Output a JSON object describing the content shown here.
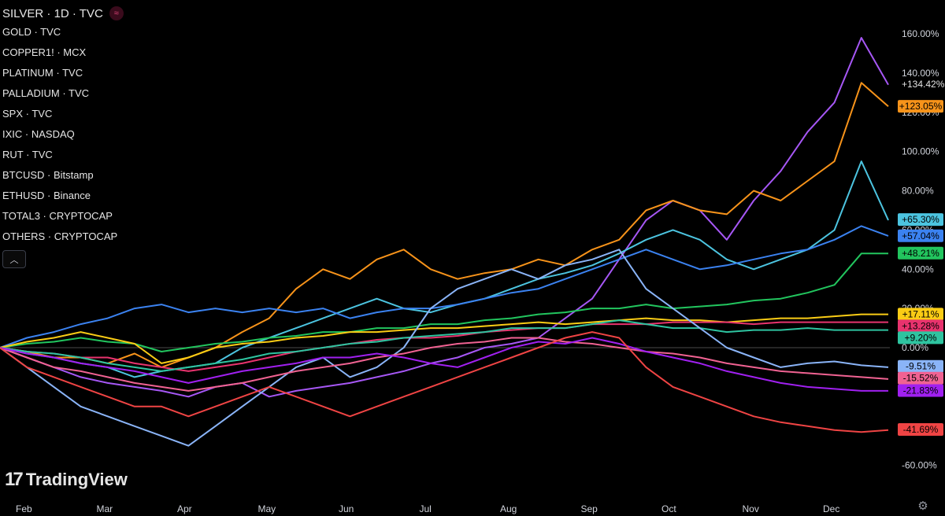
{
  "legend": {
    "main_symbol": "SILVER · 1D · TVC",
    "live_icon": "≈",
    "items": [
      "GOLD · TVC",
      "COPPER1! · MCX",
      "PLATINUM · TVC",
      "PALLADIUM · TVC",
      "SPX · TVC",
      "IXIC · NASDAQ",
      "RUT · TVC",
      "BTCUSD · Bitstamp",
      "ETHUSD · Binance",
      "TOTAL3 · CRYPTOCAP",
      "OTHERS · CRYPTOCAP"
    ],
    "collapse_icon": "chevron-up-icon",
    "collapse_glyph": "︿"
  },
  "brand": {
    "mark": "17",
    "name": "TradingView"
  },
  "settings_glyph": "⚙",
  "chart_data": {
    "type": "line",
    "x_labels": [
      "Feb",
      "Mar",
      "Apr",
      "May",
      "Jun",
      "Jul",
      "Aug",
      "Sep",
      "Oct",
      "Nov",
      "Dec"
    ],
    "y_ticks": [
      "160.00%",
      "140.00%",
      "120.00%",
      "100.00%",
      "80.00%",
      "60.00%",
      "40.00%",
      "20.00%",
      "0.00%",
      "-60.00%"
    ],
    "y_unit": "%",
    "ylim": [
      -65,
      170
    ],
    "zero_line": true,
    "badges": [
      {
        "text": "+134.42%",
        "color": "#a657f5",
        "plain": true,
        "value": 134.42
      },
      {
        "text": "+123.05%",
        "color": "#f7931a",
        "value": 123.05
      },
      {
        "text": "+65.30%",
        "color": "#4cc4e0",
        "value": 65.3
      },
      {
        "text": "+57.04%",
        "color": "#3b82f0",
        "value": 57.04
      },
      {
        "text": "+48.21%",
        "color": "#22c55e",
        "value": 48.21
      },
      {
        "text": "+17.11%",
        "color": "#facc15",
        "value": 17.11
      },
      {
        "text": "+13.28%",
        "color": "#e8336e",
        "value": 13.28
      },
      {
        "text": "+9.20%",
        "color": "#2ec4a0",
        "value": 9.2
      },
      {
        "text": "-9.51%",
        "color": "#8ab4f8",
        "value": -9.51
      },
      {
        "text": "-15.52%",
        "color": "#f06292",
        "value": -15.52
      },
      {
        "text": "-21.83%",
        "color": "#a020f0",
        "value": -21.83
      },
      {
        "text": "-41.69%",
        "color": "#ef4444",
        "value": -41.69
      }
    ],
    "series": [
      {
        "color": "#a657f5",
        "values": [
          0,
          -5,
          -10,
          -15,
          -18,
          -20,
          -22,
          -25,
          -20,
          -18,
          -25,
          -22,
          -20,
          -18,
          -15,
          -12,
          -8,
          -5,
          0,
          2,
          5,
          15,
          25,
          45,
          65,
          75,
          70,
          55,
          75,
          90,
          110,
          125,
          158,
          134
        ]
      },
      {
        "color": "#f7931a",
        "values": [
          0,
          -2,
          -5,
          -5,
          -8,
          -3,
          -10,
          -5,
          0,
          8,
          15,
          30,
          40,
          35,
          45,
          50,
          40,
          35,
          38,
          40,
          45,
          42,
          50,
          55,
          70,
          75,
          70,
          68,
          80,
          75,
          85,
          95,
          135,
          123
        ]
      },
      {
        "color": "#4cc4e0",
        "values": [
          0,
          -3,
          -5,
          -8,
          -10,
          -15,
          -12,
          -10,
          -8,
          0,
          5,
          10,
          15,
          20,
          25,
          20,
          18,
          22,
          25,
          30,
          35,
          38,
          42,
          48,
          55,
          60,
          55,
          45,
          40,
          45,
          50,
          60,
          95,
          65
        ]
      },
      {
        "color": "#3b82f0",
        "values": [
          0,
          5,
          8,
          12,
          15,
          20,
          22,
          18,
          20,
          18,
          20,
          18,
          20,
          15,
          18,
          20,
          20,
          22,
          25,
          28,
          30,
          35,
          40,
          45,
          50,
          45,
          40,
          42,
          45,
          48,
          50,
          55,
          62,
          57
        ]
      },
      {
        "color": "#22c55e",
        "values": [
          0,
          2,
          3,
          5,
          3,
          2,
          -2,
          0,
          2,
          3,
          5,
          6,
          8,
          8,
          10,
          10,
          12,
          12,
          14,
          15,
          17,
          18,
          20,
          20,
          22,
          20,
          21,
          22,
          24,
          25,
          28,
          32,
          48,
          48
        ]
      },
      {
        "color": "#facc15",
        "values": [
          0,
          3,
          5,
          8,
          5,
          2,
          -8,
          -5,
          0,
          2,
          3,
          5,
          6,
          8,
          8,
          9,
          10,
          10,
          11,
          12,
          13,
          12,
          13,
          14,
          15,
          14,
          14,
          13,
          14,
          15,
          15,
          16,
          17,
          17
        ]
      },
      {
        "color": "#e8336e",
        "values": [
          0,
          -2,
          -3,
          -5,
          -5,
          -8,
          -10,
          -12,
          -10,
          -8,
          -5,
          -2,
          0,
          2,
          4,
          5,
          5,
          6,
          8,
          9,
          10,
          10,
          12,
          12,
          12,
          13,
          13,
          13,
          12,
          13,
          13,
          13,
          13,
          13
        ]
      },
      {
        "color": "#2ec4a0",
        "values": [
          0,
          -2,
          -3,
          -5,
          -8,
          -10,
          -12,
          -10,
          -8,
          -6,
          -3,
          -2,
          0,
          2,
          3,
          5,
          6,
          7,
          8,
          10,
          10,
          10,
          12,
          14,
          12,
          10,
          10,
          8,
          9,
          9,
          10,
          9,
          9,
          9
        ]
      },
      {
        "color": "#8ab4f8",
        "values": [
          0,
          -10,
          -20,
          -30,
          -35,
          -40,
          -45,
          -50,
          -40,
          -30,
          -20,
          -10,
          -5,
          -15,
          -10,
          0,
          20,
          30,
          35,
          40,
          35,
          42,
          45,
          50,
          30,
          20,
          10,
          0,
          -5,
          -10,
          -8,
          -7,
          -9,
          -10
        ]
      },
      {
        "color": "#f06292",
        "values": [
          0,
          -5,
          -10,
          -12,
          -15,
          -18,
          -20,
          -22,
          -20,
          -18,
          -15,
          -12,
          -10,
          -8,
          -5,
          -3,
          0,
          2,
          3,
          5,
          5,
          3,
          2,
          0,
          -2,
          -3,
          -5,
          -8,
          -10,
          -12,
          -13,
          -14,
          -15,
          -16
        ]
      },
      {
        "color": "#a020f0",
        "values": [
          0,
          -3,
          -5,
          -8,
          -10,
          -12,
          -15,
          -18,
          -15,
          -12,
          -10,
          -8,
          -5,
          -5,
          -3,
          -5,
          -8,
          -10,
          -5,
          0,
          3,
          2,
          5,
          2,
          -2,
          -5,
          -8,
          -12,
          -15,
          -18,
          -20,
          -21,
          -22,
          -22
        ]
      },
      {
        "color": "#ef4444",
        "values": [
          0,
          -10,
          -15,
          -20,
          -25,
          -30,
          -30,
          -35,
          -30,
          -25,
          -20,
          -25,
          -30,
          -35,
          -30,
          -25,
          -20,
          -15,
          -10,
          -5,
          0,
          5,
          8,
          5,
          -10,
          -20,
          -25,
          -30,
          -35,
          -38,
          -40,
          -42,
          -43,
          -42
        ]
      }
    ]
  }
}
